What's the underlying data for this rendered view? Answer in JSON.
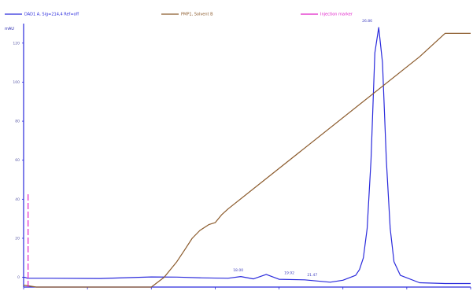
{
  "chart_data": {
    "type": "line",
    "y_unit_label": "mAU",
    "x_ticks": [],
    "y_ticks": [
      "0",
      "20",
      "40",
      "60",
      "80",
      "100",
      "120"
    ],
    "x_range": [
      0,
      35
    ],
    "y_range": [
      -5,
      130
    ],
    "legend": [
      {
        "text": "DAD1 A, Sig=214,4 Ref=off",
        "color": "#2a2adc"
      },
      {
        "text": "PMP1, Solvent B",
        "color": "#8b5a2b"
      },
      {
        "text": "Injection marker",
        "color": "#e020c8"
      }
    ],
    "series": [
      {
        "color": "#2a2adc",
        "x": [
          0,
          0.1,
          0.3,
          2,
          6,
          10,
          12,
          14,
          16,
          17,
          18,
          19,
          20,
          22,
          24,
          25,
          26,
          26.3,
          26.6,
          26.9,
          27.2,
          27.5,
          27.8,
          28.1,
          28.4,
          28.7,
          29.0,
          29.5,
          31,
          33,
          35
        ],
        "y": [
          0,
          0,
          -0.5,
          -0.5,
          -0.6,
          0.2,
          0.1,
          -0.3,
          -0.5,
          0.4,
          -0.8,
          1.5,
          -1.0,
          -1.3,
          -2.5,
          -1.5,
          1,
          4,
          10,
          25,
          60,
          115,
          128,
          110,
          60,
          25,
          8,
          1,
          -2.8,
          -3.2,
          -3.2
        ]
      },
      {
        "color": "#8b5a2b",
        "x": [
          0,
          1,
          10,
          11,
          12,
          12.6,
          13.2,
          13.8,
          14.5,
          15,
          15.5,
          16,
          31,
          33,
          35
        ],
        "y": [
          -4,
          -5,
          -5,
          0,
          8,
          14,
          20,
          24,
          27,
          28,
          32,
          35,
          113,
          125,
          125
        ]
      },
      {
        "color": "#e020c8",
        "x": [
          0.35,
          0.35
        ],
        "y": [
          -5,
          43
        ]
      }
    ],
    "peak_labels": [
      {
        "text": "18.00",
        "x": 16.8,
        "y": 2.2
      },
      {
        "text": "19.92",
        "x": 20.8,
        "y": 0.8
      },
      {
        "text": "21.47",
        "x": 22.6,
        "y": -0.2
      },
      {
        "text": "26.86",
        "x": 26.9,
        "y": 130
      }
    ]
  }
}
